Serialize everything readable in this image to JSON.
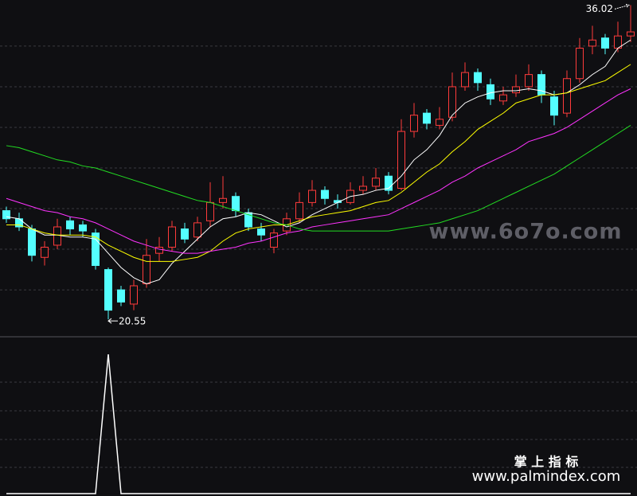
{
  "chart_data": [
    {
      "type": "candlestick",
      "open": [
        25.9,
        25.5,
        25.0,
        23.6,
        24.2,
        25.4,
        25.2,
        24.8,
        23.0,
        22.0,
        21.3,
        22.3,
        23.8,
        24.1,
        25.0,
        24.6,
        25.4,
        26.3,
        26.6,
        25.8,
        25.0,
        24.1,
        24.9,
        25.5,
        26.3,
        26.9,
        26.4,
        26.3,
        26.9,
        27.1,
        27.6,
        27.0,
        29.8,
        30.7,
        30.1,
        30.5,
        32.0,
        32.7,
        32.1,
        31.3,
        31.7,
        32.0,
        32.6,
        31.5,
        30.7,
        32.4,
        34.0,
        34.4,
        33.9,
        34.5
      ],
      "high": [
        26.1,
        25.8,
        25.2,
        24.4,
        25.5,
        25.6,
        25.4,
        25.0,
        23.1,
        22.2,
        22.5,
        24.5,
        24.6,
        25.4,
        25.3,
        25.6,
        27.3,
        27.6,
        26.8,
        26.0,
        25.3,
        25.0,
        25.8,
        26.8,
        27.4,
        27.1,
        26.7,
        27.3,
        27.6,
        28.0,
        27.8,
        30.4,
        31.2,
        30.9,
        31.0,
        32.7,
        33.2,
        32.9,
        32.4,
        32.0,
        32.6,
        33.1,
        32.8,
        31.8,
        32.8,
        34.4,
        35.0,
        34.6,
        35.2,
        36.02
      ],
      "low": [
        25.3,
        24.9,
        23.4,
        23.2,
        24.0,
        24.7,
        24.6,
        23.0,
        20.55,
        21.2,
        21.0,
        22.1,
        23.4,
        23.9,
        24.3,
        24.4,
        25.1,
        26.0,
        25.6,
        24.9,
        24.4,
        23.8,
        24.7,
        25.3,
        26.1,
        26.2,
        26.0,
        26.2,
        26.7,
        26.9,
        26.7,
        26.9,
        29.5,
        29.9,
        29.9,
        30.3,
        31.8,
        31.8,
        31.1,
        31.1,
        31.5,
        31.8,
        31.2,
        30.1,
        30.5,
        32.2,
        33.6,
        33.6,
        33.7,
        34.2
      ],
      "close": [
        25.5,
        25.1,
        23.7,
        24.1,
        25.1,
        25.0,
        24.9,
        23.2,
        21.0,
        21.4,
        22.2,
        23.7,
        24.1,
        25.1,
        24.5,
        25.3,
        26.3,
        26.5,
        25.9,
        25.1,
        24.7,
        24.8,
        25.5,
        26.3,
        26.9,
        26.5,
        26.3,
        26.9,
        27.1,
        27.5,
        26.9,
        29.8,
        30.6,
        30.2,
        30.4,
        32.0,
        32.7,
        32.2,
        31.4,
        31.6,
        32.0,
        32.6,
        31.6,
        30.6,
        32.4,
        33.9,
        34.3,
        33.9,
        34.5,
        34.7
      ],
      "up_color": "#ff3b3b",
      "down_color": "#54ffff",
      "series": [
        {
          "color": "#ffffff",
          "values": [
            25.6,
            25.5,
            25.0,
            24.7,
            24.7,
            24.6,
            24.6,
            24.5,
            23.8,
            23.1,
            22.6,
            22.3,
            22.5,
            23.3,
            23.9,
            24.5,
            25.1,
            25.5,
            25.6,
            25.8,
            25.7,
            25.4,
            25.1,
            25.3,
            25.7,
            26.0,
            26.3,
            26.6,
            26.7,
            26.9,
            27.0,
            27.6,
            28.4,
            28.9,
            29.6,
            30.6,
            31.2,
            31.5,
            31.7,
            31.8,
            31.8,
            31.9,
            31.8,
            31.6,
            31.7,
            32.1,
            32.6,
            33.0,
            33.9,
            34.3
          ]
        },
        {
          "color": "#ffff00",
          "values": [
            25.2,
            25.2,
            25.0,
            24.8,
            24.7,
            24.7,
            24.7,
            24.6,
            24.2,
            23.9,
            23.6,
            23.4,
            23.4,
            23.4,
            23.5,
            23.6,
            23.9,
            24.4,
            24.8,
            25.0,
            25.1,
            25.2,
            25.2,
            25.4,
            25.6,
            25.7,
            25.8,
            25.9,
            26.1,
            26.3,
            26.4,
            26.8,
            27.3,
            27.8,
            28.2,
            28.8,
            29.3,
            29.9,
            30.3,
            30.7,
            31.2,
            31.4,
            31.6,
            31.6,
            31.7,
            31.9,
            32.1,
            32.3,
            32.7,
            33.1
          ]
        },
        {
          "color": "#ff33ff",
          "values": [
            26.5,
            26.3,
            26.1,
            25.9,
            25.8,
            25.6,
            25.5,
            25.3,
            25.0,
            24.7,
            24.4,
            24.2,
            24.0,
            23.9,
            23.8,
            23.8,
            23.9,
            24.0,
            24.1,
            24.3,
            24.4,
            24.6,
            24.8,
            24.9,
            25.1,
            25.2,
            25.3,
            25.4,
            25.5,
            25.6,
            25.7,
            26.0,
            26.3,
            26.6,
            26.9,
            27.3,
            27.6,
            28.0,
            28.3,
            28.6,
            28.9,
            29.3,
            29.5,
            29.7,
            30.0,
            30.4,
            30.8,
            31.2,
            31.6,
            31.9
          ]
        },
        {
          "color": "#22dd22",
          "values": [
            29.1,
            29.0,
            28.8,
            28.6,
            28.4,
            28.3,
            28.1,
            28.0,
            27.8,
            27.6,
            27.4,
            27.2,
            27.0,
            26.8,
            26.6,
            26.4,
            26.3,
            26.1,
            25.9,
            25.7,
            25.5,
            25.3,
            25.2,
            25.0,
            24.9,
            24.9,
            24.9,
            24.9,
            24.9,
            24.9,
            24.9,
            25.0,
            25.1,
            25.2,
            25.3,
            25.5,
            25.7,
            25.9,
            26.2,
            26.5,
            26.8,
            27.1,
            27.4,
            27.7,
            28.1,
            28.5,
            28.9,
            29.3,
            29.7,
            30.1
          ]
        }
      ],
      "ylim": [
        19.73,
        36.27
      ],
      "gridlines": [
        22,
        24,
        26,
        28,
        30,
        32,
        34
      ],
      "annotations": [
        {
          "text": "36.02",
          "index": 49
        },
        {
          "text": "20.55",
          "index": 8
        }
      ],
      "watermark": "www.6o7o.com"
    },
    {
      "type": "line",
      "values": [
        0,
        0,
        0,
        0,
        0,
        0,
        0,
        0,
        1,
        0,
        0,
        0,
        0,
        0,
        0,
        0,
        0,
        0,
        0,
        0,
        0,
        0,
        0,
        0,
        0,
        0,
        0,
        0,
        0,
        0,
        0,
        0,
        0,
        0,
        0,
        0,
        0,
        0,
        0,
        0,
        0,
        0,
        0,
        0,
        0,
        0,
        0,
        0,
        0,
        0
      ],
      "color": "#ffffff",
      "ylim": [
        0,
        1.126
      ]
    }
  ],
  "footer": {
    "brand": "掌 上 指 标",
    "url": "www.palmindex.com"
  }
}
